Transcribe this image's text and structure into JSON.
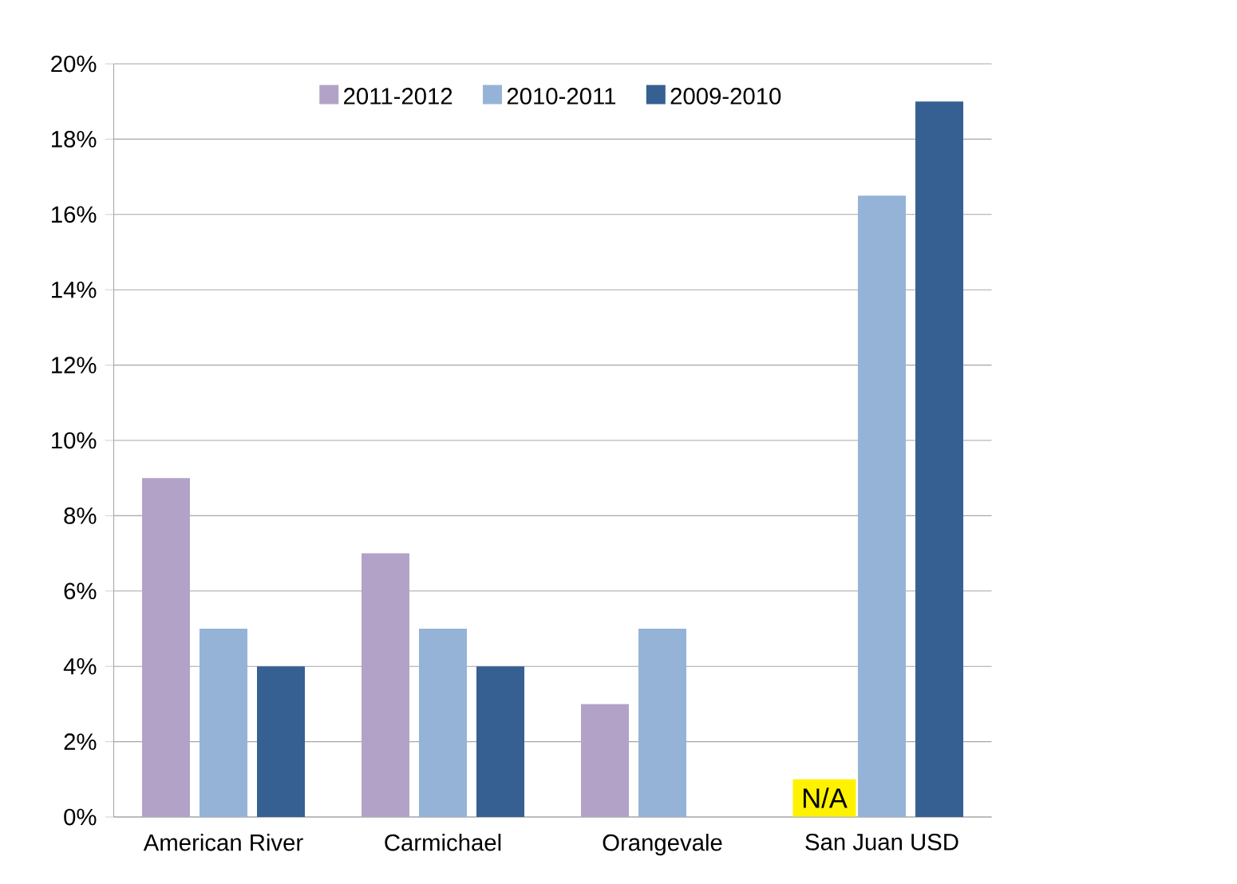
{
  "chart_data": {
    "type": "bar",
    "categories": [
      "American River",
      "Carmichael",
      "Orangevale",
      "San Juan USD"
    ],
    "series": [
      {
        "name": "2011-2012",
        "color": "#b3a2c7",
        "values": [
          9,
          7,
          3,
          null
        ]
      },
      {
        "name": "2010-2011",
        "color": "#95b3d7",
        "values": [
          5,
          5,
          5,
          16.5
        ]
      },
      {
        "name": "2009-2010",
        "color": "#366092",
        "values": [
          4,
          4,
          null,
          19
        ]
      }
    ],
    "ylim": [
      0,
      20
    ],
    "yticks": [
      {
        "value": 0,
        "label": "0%"
      },
      {
        "value": 2,
        "label": "2%"
      },
      {
        "value": 4,
        "label": "4%"
      },
      {
        "value": 6,
        "label": "6%"
      },
      {
        "value": 8,
        "label": "8%"
      },
      {
        "value": 10,
        "label": "10%"
      },
      {
        "value": 12,
        "label": "12%"
      },
      {
        "value": 14,
        "label": "14%"
      },
      {
        "value": 16,
        "label": "16%"
      },
      {
        "value": 18,
        "label": "18%"
      },
      {
        "value": 20,
        "label": "20%"
      }
    ],
    "grid": "y",
    "legend": "top",
    "annotations": [
      "N/A"
    ]
  }
}
